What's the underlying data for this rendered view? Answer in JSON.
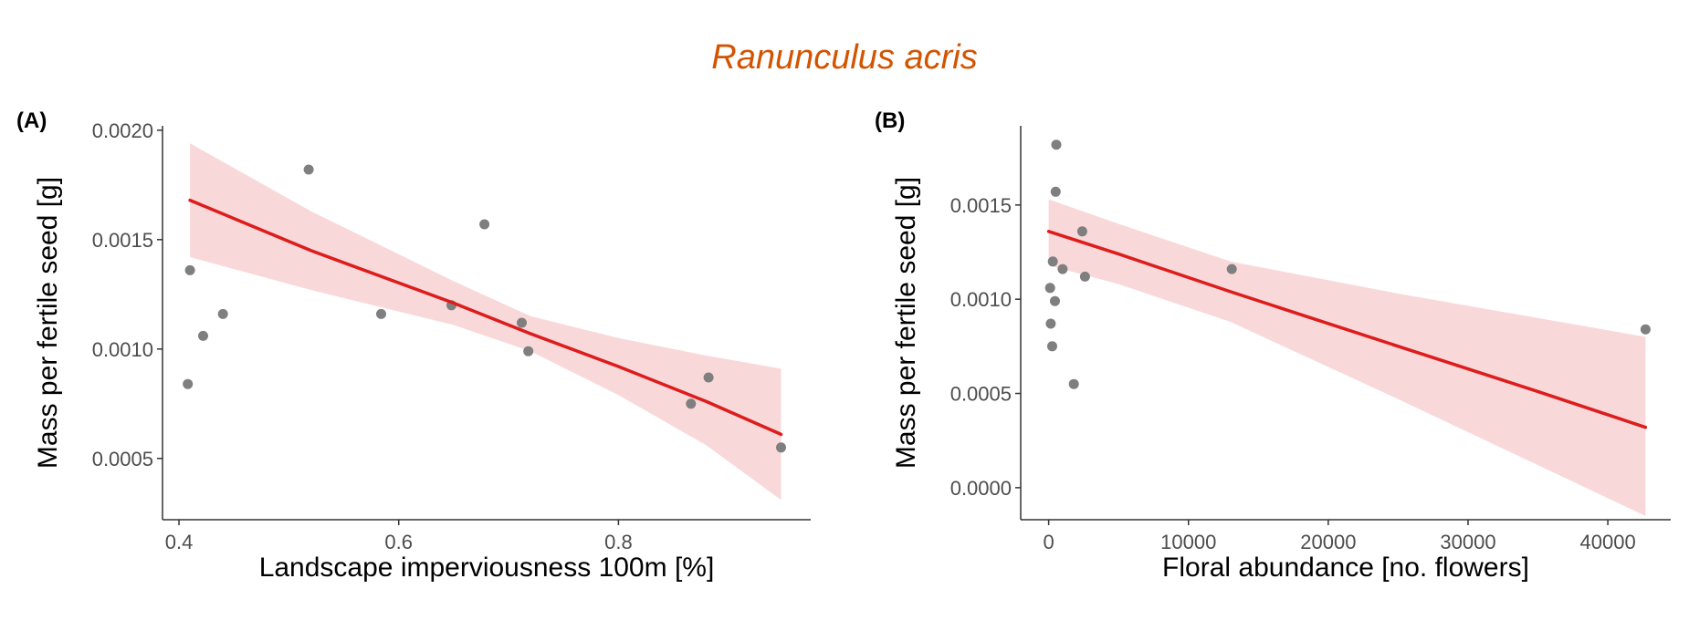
{
  "figure_title": "Ranunculus acris",
  "colors": {
    "title": "#d35400",
    "points": "#7f7f7f",
    "fit_line": "#dd1c1c",
    "ci_band": "#f7c8cb",
    "axis": "#333333",
    "tick_text": "#4d4d4d",
    "label_text": "#000000"
  },
  "chart_data": [
    {
      "panel_label": "(A)",
      "type": "scatter",
      "xlabel": "Landscape imperviousness 100m [%]",
      "ylabel": "Mass per fertile seed [g]",
      "xlim": [
        0.385,
        0.975
      ],
      "ylim": [
        0.00022,
        0.00202
      ],
      "xticks": [
        0.4,
        0.6,
        0.8
      ],
      "xtick_labels": [
        "0.4",
        "0.6",
        "0.8"
      ],
      "yticks": [
        0.0005,
        0.001,
        0.0015,
        0.002
      ],
      "ytick_labels": [
        "0.0005",
        "0.0010",
        "0.0015",
        "0.0020"
      ],
      "grid": false,
      "points": [
        {
          "x": 0.408,
          "y": 0.00084
        },
        {
          "x": 0.41,
          "y": 0.00136
        },
        {
          "x": 0.422,
          "y": 0.00106
        },
        {
          "x": 0.44,
          "y": 0.00116
        },
        {
          "x": 0.518,
          "y": 0.00182
        },
        {
          "x": 0.584,
          "y": 0.00116
        },
        {
          "x": 0.648,
          "y": 0.0012
        },
        {
          "x": 0.678,
          "y": 0.00157
        },
        {
          "x": 0.712,
          "y": 0.00112
        },
        {
          "x": 0.718,
          "y": 0.00099
        },
        {
          "x": 0.866,
          "y": 0.00075
        },
        {
          "x": 0.882,
          "y": 0.00087
        },
        {
          "x": 0.948,
          "y": 0.00055
        }
      ],
      "fit": {
        "x": [
          0.41,
          0.52,
          0.65,
          0.72,
          0.8,
          0.88,
          0.948
        ],
        "y": [
          0.00168,
          0.00145,
          0.00121,
          0.00107,
          0.00092,
          0.00076,
          0.00061
        ],
        "lower": [
          0.00142,
          0.00127,
          0.00111,
          0.00099,
          0.00079,
          0.00056,
          0.00031
        ],
        "upper": [
          0.00194,
          0.00163,
          0.00131,
          0.00115,
          0.00105,
          0.00097,
          0.00091
        ]
      }
    },
    {
      "panel_label": "(B)",
      "type": "scatter",
      "xlabel": "Floral abundance [no. flowers]",
      "ylabel": "Mass per fertile seed [g]",
      "xlim": [
        -2000,
        44500
      ],
      "ylim": [
        -0.00017,
        0.00192
      ],
      "xticks": [
        0,
        10000,
        20000,
        30000,
        40000
      ],
      "xtick_labels": [
        "0",
        "10000",
        "20000",
        "30000",
        "40000"
      ],
      "yticks": [
        0,
        0.0005,
        0.001,
        0.0015
      ],
      "ytick_labels": [
        "0.0000",
        "0.0005",
        "0.0010",
        "0.0015"
      ],
      "grid": false,
      "points": [
        {
          "x": 100,
          "y": 0.00106
        },
        {
          "x": 150,
          "y": 0.00087
        },
        {
          "x": 250,
          "y": 0.00075
        },
        {
          "x": 300,
          "y": 0.0012
        },
        {
          "x": 450,
          "y": 0.00099
        },
        {
          "x": 500,
          "y": 0.00157
        },
        {
          "x": 550,
          "y": 0.00182
        },
        {
          "x": 1000,
          "y": 0.00116
        },
        {
          "x": 1800,
          "y": 0.00055
        },
        {
          "x": 2400,
          "y": 0.00136
        },
        {
          "x": 2600,
          "y": 0.00112
        },
        {
          "x": 13100,
          "y": 0.00116
        },
        {
          "x": 42700,
          "y": 0.00084
        }
      ],
      "fit": {
        "x": [
          0,
          5000,
          13000,
          25000,
          35000,
          42700
        ],
        "y": [
          0.00136,
          0.00124,
          0.00104,
          0.00075,
          0.00051,
          0.00032
        ],
        "lower": [
          0.00118,
          0.00108,
          0.00088,
          0.00047,
          0.00012,
          -0.00015
        ],
        "upper": [
          0.00153,
          0.0014,
          0.0012,
          0.00103,
          0.0009,
          0.0008
        ]
      }
    }
  ]
}
